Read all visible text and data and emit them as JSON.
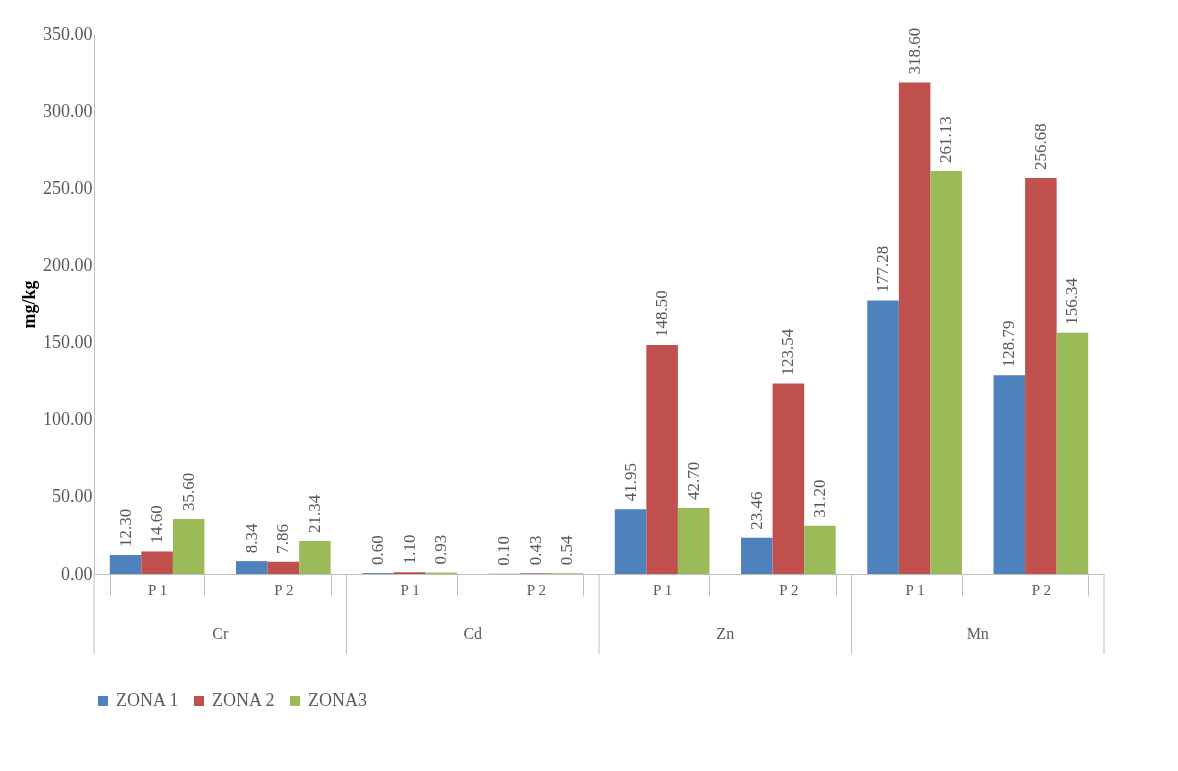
{
  "chart_data": {
    "type": "bar",
    "ylabel": "mg/kg",
    "categories": [
      "P 1",
      "P 2",
      "P 1",
      "P 2",
      "P 1",
      "P 2",
      "P 1",
      "P 2"
    ],
    "annotations": [
      "Cr",
      "Cd",
      "Zn",
      "Mn"
    ],
    "series": [
      {
        "name": "ZONA 1",
        "color": "#4f81bd",
        "values": [
          12.3,
          8.34,
          0.6,
          0.1,
          41.95,
          23.46,
          177.28,
          128.79
        ],
        "value_labels": [
          "12.30",
          "8.34",
          "0.60",
          "0.10",
          "41.95",
          "23.46",
          "177.28",
          "128.79"
        ]
      },
      {
        "name": "ZONA 2",
        "color": "#c0504d",
        "values": [
          14.6,
          7.86,
          1.1,
          0.43,
          148.5,
          123.54,
          318.6,
          256.68
        ],
        "value_labels": [
          "14.60",
          "7.86",
          "1.10",
          "0.43",
          "148.50",
          "123.54",
          "318.60",
          "256.68"
        ]
      },
      {
        "name": "ZONA3",
        "color": "#9bbb59",
        "values": [
          35.6,
          21.34,
          0.93,
          0.54,
          42.7,
          31.2,
          261.13,
          156.34
        ],
        "value_labels": [
          "35.60",
          "21.34",
          "0.93",
          "0.54",
          "42.70",
          "31.20",
          "261.13",
          "156.34"
        ]
      }
    ],
    "ylim": [
      0,
      350
    ],
    "yticks": [
      {
        "value": 0,
        "label": "0.00"
      },
      {
        "value": 50,
        "label": "50.00"
      },
      {
        "value": 100,
        "label": "100.00"
      },
      {
        "value": 150,
        "label": "150.00"
      },
      {
        "value": 200,
        "label": "200.00"
      },
      {
        "value": 250,
        "label": "250.00"
      },
      {
        "value": 300,
        "label": "300.00"
      },
      {
        "value": 350,
        "label": "350.00"
      }
    ],
    "grid": false,
    "legend": "bottom"
  }
}
